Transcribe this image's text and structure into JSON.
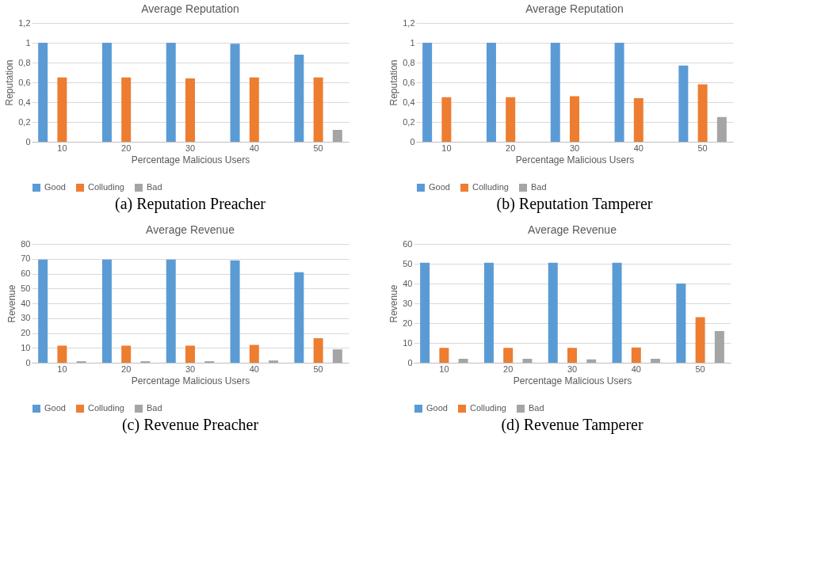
{
  "chart_data": [
    {
      "type": "bar",
      "title": "Average Reputation",
      "xlabel": "Percentage Malicious Users",
      "ylabel": "Reputation",
      "categories": [
        "10",
        "20",
        "30",
        "40",
        "50"
      ],
      "series": [
        {
          "name": "Good",
          "color": "#5b9bd5",
          "values": [
            1,
            1,
            1,
            0.99,
            0.88
          ]
        },
        {
          "name": "Colluding",
          "color": "#ed7d31",
          "values": [
            0.65,
            0.65,
            0.64,
            0.65,
            0.65
          ]
        },
        {
          "name": "Bad",
          "color": "#a5a5a5",
          "values": [
            0,
            0,
            0,
            0,
            0.12
          ]
        }
      ],
      "ylim": [
        0,
        1.2
      ],
      "yticks": [
        0,
        {
          "value": 0.2,
          "label": "0,2"
        },
        {
          "value": 0.4,
          "label": "0,4"
        },
        {
          "value": 0.6,
          "label": "0,6"
        },
        {
          "value": 0.8,
          "label": "0,8"
        },
        1,
        {
          "value": 1.2,
          "label": "1,2"
        }
      ],
      "grid": "y",
      "legend": "bottom",
      "annotations": [
        "(a) Reputation Preacher"
      ]
    },
    {
      "type": "bar",
      "title": "Average Reputation",
      "xlabel": "Percentage Malicious Users",
      "ylabel": "Reputation",
      "categories": [
        "10",
        "20",
        "30",
        "40",
        "50"
      ],
      "series": [
        {
          "name": "Good",
          "color": "#5b9bd5",
          "values": [
            1,
            1,
            1,
            1,
            0.77
          ]
        },
        {
          "name": "Colluding",
          "color": "#ed7d31",
          "values": [
            0.45,
            0.45,
            0.46,
            0.44,
            0.58
          ]
        },
        {
          "name": "Bad",
          "color": "#a5a5a5",
          "values": [
            0,
            0,
            0,
            0,
            0.25
          ]
        }
      ],
      "ylim": [
        0,
        1.2
      ],
      "yticks": [
        0,
        {
          "value": 0.2,
          "label": "0,2"
        },
        {
          "value": 0.4,
          "label": "0,4"
        },
        {
          "value": 0.6,
          "label": "0,6"
        },
        {
          "value": 0.8,
          "label": "0,8"
        },
        1,
        {
          "value": 1.2,
          "label": "1,2"
        }
      ],
      "grid": "y",
      "legend": "bottom",
      "annotations": [
        "(b) Reputation Tamperer"
      ]
    },
    {
      "type": "bar",
      "title": "Average Revenue",
      "xlabel": "Percentage Malicious Users",
      "ylabel": "Revenue",
      "categories": [
        "10",
        "20",
        "30",
        "40",
        "50"
      ],
      "series": [
        {
          "name": "Good",
          "color": "#5b9bd5",
          "values": [
            69.5,
            69.5,
            69.5,
            69,
            61
          ]
        },
        {
          "name": "Colluding",
          "color": "#ed7d31",
          "values": [
            11.5,
            11.5,
            11.5,
            12,
            16.5
          ]
        },
        {
          "name": "Bad",
          "color": "#a5a5a5",
          "values": [
            1,
            1,
            1,
            1.5,
            9
          ]
        }
      ],
      "ylim": [
        0,
        80
      ],
      "yticks": [
        0,
        10,
        20,
        30,
        40,
        50,
        60,
        70,
        80
      ],
      "grid": "y",
      "legend": "bottom",
      "annotations": [
        "(c) Revenue Preacher"
      ]
    },
    {
      "type": "bar",
      "title": "Average Revenue",
      "xlabel": "Percentage Malicious Users",
      "ylabel": "Revenue",
      "categories": [
        "10",
        "20",
        "30",
        "40",
        "50"
      ],
      "series": [
        {
          "name": "Good",
          "color": "#5b9bd5",
          "values": [
            50.5,
            50.5,
            50.5,
            50.5,
            40
          ]
        },
        {
          "name": "Colluding",
          "color": "#ed7d31",
          "values": [
            7.5,
            7.5,
            7.5,
            7.7,
            23
          ]
        },
        {
          "name": "Bad",
          "color": "#a5a5a5",
          "values": [
            2,
            2,
            1.7,
            2,
            16
          ]
        }
      ],
      "ylim": [
        0,
        60
      ],
      "yticks": [
        0,
        10,
        20,
        30,
        40,
        50,
        60
      ],
      "grid": "y",
      "legend": "bottom",
      "annotations": [
        "(d) Revenue Tamperer"
      ]
    }
  ]
}
